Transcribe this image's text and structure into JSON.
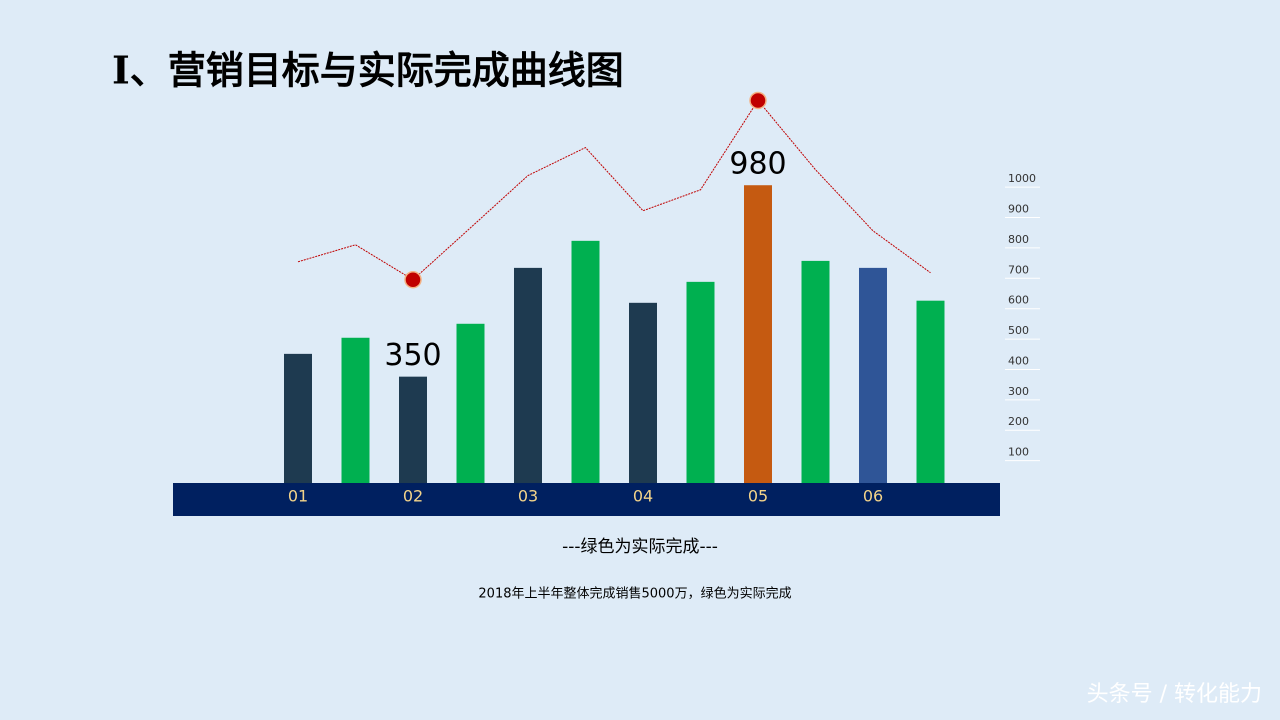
{
  "title": "Ⅰ、营销目标与实际完成曲线图",
  "chart_data": {
    "type": "bar",
    "categories": [
      "01",
      null,
      "02",
      null,
      "03",
      null,
      "04",
      null,
      "05",
      null,
      "06",
      null
    ],
    "values": [
      425,
      478,
      350,
      524,
      708,
      797,
      593,
      662,
      980,
      731,
      708,
      600
    ],
    "value_labels": [
      null,
      null,
      "350",
      null,
      null,
      null,
      null,
      null,
      "980",
      null,
      null,
      null
    ],
    "colors": [
      "#1e3a50",
      "#00b050",
      "#1e3a50",
      "#00b050",
      "#1e3a50",
      "#00b050",
      "#1e3a50",
      "#00b050",
      "#c55a11",
      "#00b050",
      "#2f5597",
      "#00b050"
    ],
    "line_values": [
      728,
      784,
      669,
      840,
      1012,
      1104,
      896,
      965,
      1259,
      1031,
      830,
      692
    ],
    "line_color": "#c00000",
    "ylim": [
      0,
      1300
    ],
    "yticks": [
      100,
      200,
      300,
      400,
      500,
      600,
      700,
      800,
      900,
      1000
    ]
  },
  "note": "---绿色为实际完成---",
  "footer": "2018年上半年整体完成销售5000万，绿色为实际完成",
  "watermark": "头条号 / 转化能力"
}
